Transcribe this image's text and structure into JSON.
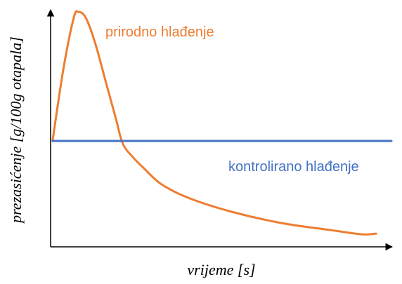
{
  "chart_data": {
    "type": "line",
    "xlabel": "vrijeme [s]",
    "ylabel": "prezasićenje [g/100g otapala]",
    "xlim": [
      0,
      100
    ],
    "ylim": [
      0,
      100
    ],
    "series": [
      {
        "name": "prirodno hlađenje",
        "color": "#ed7d31",
        "x": [
          0.6,
          3.7,
          6.8,
          8.2,
          10.3,
          13.0,
          16.1,
          19.2,
          21.2,
          24.3,
          27.4,
          32.6,
          40.8,
          53.2,
          67.6,
          82.1,
          91.3,
          95.5
        ],
        "values": [
          45.1,
          74.8,
          97.0,
          99.4,
          97.0,
          86.6,
          70.3,
          54.0,
          43.6,
          37.7,
          33.2,
          26.4,
          20.5,
          14.8,
          10.1,
          7.1,
          5.3,
          5.6
        ]
      },
      {
        "name": "kontrolirano hlađenje",
        "color": "#4472c4",
        "x": [
          0.6,
          100
        ],
        "values": [
          44.8,
          44.8
        ]
      }
    ]
  }
}
